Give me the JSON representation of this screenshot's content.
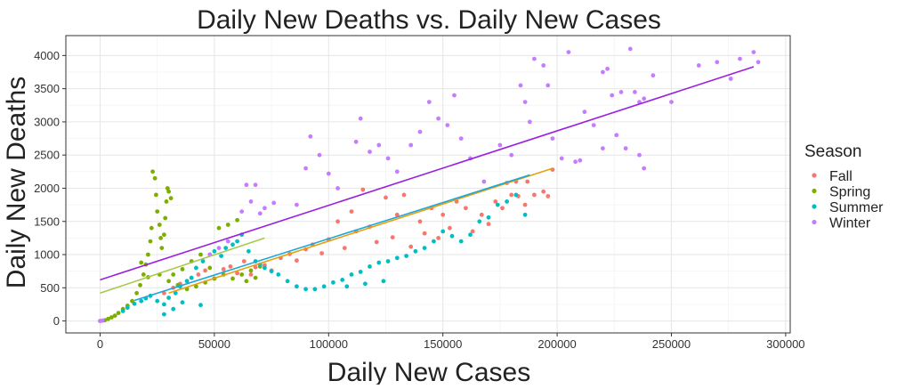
{
  "chart_data": {
    "type": "scatter",
    "title": "Daily New Deaths vs. Daily New Cases",
    "xlabel": "Daily New Cases",
    "ylabel": "Daily New Deaths",
    "xlim": [
      -15000,
      302000
    ],
    "ylim": [
      -180,
      4300
    ],
    "x_ticks": [
      0,
      50000,
      100000,
      150000,
      200000,
      250000,
      300000
    ],
    "y_ticks": [
      0,
      500,
      1000,
      1500,
      2000,
      2500,
      3000,
      3500,
      4000
    ],
    "grid": true,
    "legend": {
      "title": "Season",
      "position": "right"
    },
    "series": [
      {
        "name": "Fall",
        "color": "#F8766D",
        "trend": {
          "x": [
            30000,
            198000
          ],
          "y": [
            420,
            2300
          ]
        },
        "points": [
          [
            28000,
            420
          ],
          [
            32000,
            500
          ],
          [
            35000,
            560
          ],
          [
            38000,
            600
          ],
          [
            40000,
            650
          ],
          [
            43000,
            700
          ],
          [
            46000,
            760
          ],
          [
            50000,
            640
          ],
          [
            54000,
            780
          ],
          [
            57000,
            820
          ],
          [
            60000,
            720
          ],
          [
            63000,
            900
          ],
          [
            66000,
            700
          ],
          [
            68000,
            810
          ],
          [
            72000,
            840
          ],
          [
            75000,
            760
          ],
          [
            79000,
            950
          ],
          [
            83000,
            1010
          ],
          [
            86000,
            910
          ],
          [
            90000,
            1080
          ],
          [
            93000,
            1150
          ],
          [
            97000,
            1020
          ],
          [
            100000,
            1230
          ],
          [
            104000,
            1500
          ],
          [
            107000,
            1100
          ],
          [
            110000,
            1650
          ],
          [
            112000,
            1350
          ],
          [
            115000,
            1980
          ],
          [
            118000,
            1420
          ],
          [
            121000,
            1190
          ],
          [
            125000,
            1860
          ],
          [
            128000,
            1260
          ],
          [
            130000,
            1600
          ],
          [
            133000,
            1900
          ],
          [
            136000,
            1120
          ],
          [
            140000,
            1500
          ],
          [
            142000,
            1320
          ],
          [
            145000,
            1700
          ],
          [
            148000,
            1250
          ],
          [
            150000,
            1600
          ],
          [
            153000,
            1400
          ],
          [
            156000,
            1800
          ],
          [
            160000,
            1700
          ],
          [
            163000,
            1350
          ],
          [
            167000,
            1600
          ],
          [
            170000,
            1460
          ],
          [
            173000,
            1800
          ],
          [
            176000,
            1700
          ],
          [
            180000,
            1900
          ],
          [
            183000,
            1880
          ],
          [
            186000,
            1750
          ],
          [
            190000,
            1900
          ],
          [
            194000,
            1950
          ],
          [
            198000,
            2280
          ],
          [
            196000,
            1880
          ],
          [
            187000,
            2100
          ],
          [
            182000,
            2100
          ],
          [
            178000,
            2080
          ]
        ]
      },
      {
        "name": "Spring",
        "color": "#7CAE00",
        "trend": {
          "x": [
            0,
            72000
          ],
          "y": [
            420,
            1250
          ]
        },
        "points": [
          [
            0,
            0
          ],
          [
            2000,
            10
          ],
          [
            3500,
            30
          ],
          [
            5000,
            55
          ],
          [
            6500,
            80
          ],
          [
            8000,
            120
          ],
          [
            10000,
            180
          ],
          [
            12000,
            230
          ],
          [
            14000,
            300
          ],
          [
            16000,
            420
          ],
          [
            17500,
            540
          ],
          [
            19000,
            700
          ],
          [
            20000,
            850
          ],
          [
            21000,
            1000
          ],
          [
            22000,
            1200
          ],
          [
            22500,
            1400
          ],
          [
            23000,
            2250
          ],
          [
            24000,
            2150
          ],
          [
            24500,
            1900
          ],
          [
            25000,
            1650
          ],
          [
            26000,
            1450
          ],
          [
            26500,
            1250
          ],
          [
            27000,
            1100
          ],
          [
            28000,
            1300
          ],
          [
            28500,
            1550
          ],
          [
            29000,
            1800
          ],
          [
            29500,
            2000
          ],
          [
            30000,
            1950
          ],
          [
            31000,
            1850
          ],
          [
            18000,
            880
          ],
          [
            21000,
            660
          ],
          [
            26000,
            700
          ],
          [
            30000,
            600
          ],
          [
            34000,
            540
          ],
          [
            38000,
            480
          ],
          [
            42000,
            520
          ],
          [
            46000,
            580
          ],
          [
            50000,
            640
          ],
          [
            54000,
            700
          ],
          [
            58000,
            640
          ],
          [
            62000,
            700
          ],
          [
            66000,
            760
          ],
          [
            70000,
            820
          ],
          [
            52000,
            1400
          ],
          [
            56000,
            1450
          ],
          [
            60000,
            1520
          ],
          [
            40000,
            900
          ],
          [
            44000,
            1000
          ],
          [
            36000,
            780
          ],
          [
            32000,
            700
          ],
          [
            48000,
            800
          ],
          [
            64000,
            600
          ],
          [
            68000,
            650
          ]
        ]
      },
      {
        "name": "Summer",
        "color": "#00BFC4",
        "trend": {
          "x": [
            15000,
            188000
          ],
          "y": [
            310,
            2200
          ]
        },
        "points": [
          [
            10000,
            150
          ],
          [
            12000,
            200
          ],
          [
            15000,
            260
          ],
          [
            18000,
            300
          ],
          [
            20000,
            340
          ],
          [
            22000,
            380
          ],
          [
            25000,
            300
          ],
          [
            28000,
            250
          ],
          [
            30000,
            350
          ],
          [
            33000,
            420
          ],
          [
            35000,
            520
          ],
          [
            38000,
            600
          ],
          [
            40000,
            650
          ],
          [
            42000,
            800
          ],
          [
            45000,
            900
          ],
          [
            48000,
            1000
          ],
          [
            50000,
            1050
          ],
          [
            53000,
            980
          ],
          [
            55000,
            1100
          ],
          [
            58000,
            1150
          ],
          [
            60000,
            1200
          ],
          [
            62000,
            1300
          ],
          [
            65000,
            1050
          ],
          [
            68000,
            900
          ],
          [
            70000,
            850
          ],
          [
            72000,
            800
          ],
          [
            75000,
            750
          ],
          [
            78000,
            700
          ],
          [
            82000,
            600
          ],
          [
            86000,
            520
          ],
          [
            90000,
            480
          ],
          [
            94000,
            480
          ],
          [
            98000,
            520
          ],
          [
            102000,
            580
          ],
          [
            106000,
            620
          ],
          [
            110000,
            700
          ],
          [
            114000,
            740
          ],
          [
            118000,
            820
          ],
          [
            122000,
            880
          ],
          [
            126000,
            900
          ],
          [
            130000,
            950
          ],
          [
            134000,
            980
          ],
          [
            138000,
            1050
          ],
          [
            142000,
            1100
          ],
          [
            146000,
            1200
          ],
          [
            150000,
            1350
          ],
          [
            154000,
            1280
          ],
          [
            158000,
            1200
          ],
          [
            162000,
            1300
          ],
          [
            166000,
            1500
          ],
          [
            170000,
            1560
          ],
          [
            174000,
            1750
          ],
          [
            178000,
            1800
          ],
          [
            182000,
            1900
          ],
          [
            186000,
            1600
          ],
          [
            124000,
            600
          ],
          [
            116000,
            560
          ],
          [
            108000,
            520
          ],
          [
            44000,
            240
          ],
          [
            36000,
            280
          ],
          [
            32000,
            180
          ],
          [
            28000,
            100
          ]
        ]
      },
      {
        "name": "Winter",
        "color": "#C77CFF",
        "trend": {
          "x": [
            0,
            286000
          ],
          "y": [
            620,
            3830
          ]
        },
        "points": [
          [
            0,
            0
          ],
          [
            1000,
            5
          ],
          [
            48000,
            1000
          ],
          [
            52000,
            1100
          ],
          [
            56000,
            1200
          ],
          [
            62000,
            1650
          ],
          [
            64000,
            2050
          ],
          [
            66000,
            1800
          ],
          [
            68000,
            2050
          ],
          [
            70000,
            1620
          ],
          [
            72000,
            1700
          ],
          [
            76000,
            1780
          ],
          [
            86000,
            1750
          ],
          [
            90000,
            2300
          ],
          [
            92000,
            2780
          ],
          [
            96000,
            2500
          ],
          [
            100000,
            2220
          ],
          [
            104000,
            2000
          ],
          [
            112000,
            2700
          ],
          [
            114000,
            3050
          ],
          [
            118000,
            2550
          ],
          [
            122000,
            2650
          ],
          [
            126000,
            2450
          ],
          [
            130000,
            2250
          ],
          [
            136000,
            2650
          ],
          [
            140000,
            2850
          ],
          [
            144000,
            3300
          ],
          [
            148000,
            3050
          ],
          [
            152000,
            2950
          ],
          [
            155000,
            3400
          ],
          [
            158000,
            2750
          ],
          [
            162000,
            2450
          ],
          [
            168000,
            2100
          ],
          [
            175000,
            2650
          ],
          [
            180000,
            2500
          ],
          [
            184000,
            3550
          ],
          [
            186000,
            3300
          ],
          [
            188000,
            3000
          ],
          [
            190000,
            3950
          ],
          [
            194000,
            3850
          ],
          [
            196000,
            3550
          ],
          [
            198000,
            2750
          ],
          [
            202000,
            2450
          ],
          [
            205000,
            4050
          ],
          [
            208000,
            2400
          ],
          [
            212000,
            3150
          ],
          [
            216000,
            2950
          ],
          [
            220000,
            3750
          ],
          [
            222000,
            3800
          ],
          [
            224000,
            3400
          ],
          [
            226000,
            2800
          ],
          [
            228000,
            3450
          ],
          [
            232000,
            4100
          ],
          [
            234000,
            3450
          ],
          [
            236000,
            3300
          ],
          [
            238000,
            3350
          ],
          [
            242000,
            3700
          ],
          [
            250000,
            3300
          ],
          [
            262000,
            3850
          ],
          [
            270000,
            3900
          ],
          [
            276000,
            3650
          ],
          [
            280000,
            3950
          ],
          [
            286000,
            4050
          ],
          [
            288000,
            3900
          ],
          [
            210000,
            2420
          ],
          [
            220000,
            2600
          ],
          [
            230000,
            2600
          ],
          [
            236000,
            2500
          ],
          [
            238000,
            2300
          ]
        ]
      }
    ]
  }
}
